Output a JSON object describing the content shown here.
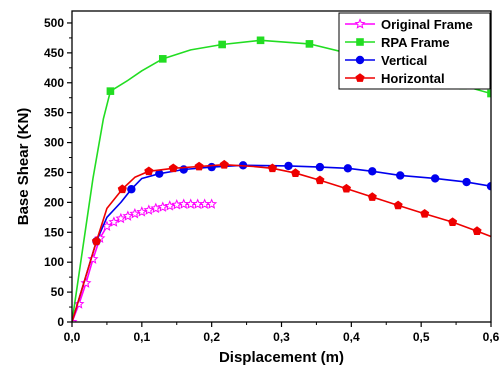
{
  "chart_data": {
    "type": "line",
    "title": "",
    "xlabel": "Displacement (m)",
    "ylabel": "Base Shear (KN)",
    "xlim": [
      0,
      0.6
    ],
    "ylim": [
      0,
      520
    ],
    "x_ticks": [
      0.0,
      0.1,
      0.2,
      0.3,
      0.4,
      0.5,
      0.6
    ],
    "x_tick_labels": [
      "0,0",
      "0,1",
      "0,2",
      "0,3",
      "0,4",
      "0,5",
      "0,6"
    ],
    "y_ticks": [
      0,
      50,
      100,
      150,
      200,
      250,
      300,
      350,
      400,
      450,
      500
    ],
    "y_tick_labels": [
      "0",
      "50",
      "100",
      "150",
      "200",
      "250",
      "300",
      "350",
      "400",
      "450",
      "500"
    ],
    "grid": false,
    "legend_position": "top-right",
    "series": [
      {
        "name": "Original Frame",
        "color": "#ff00ff",
        "marker": "star-open",
        "x": [
          0.0,
          0.01,
          0.02,
          0.03,
          0.04,
          0.05,
          0.06,
          0.07,
          0.08,
          0.09,
          0.1,
          0.11,
          0.12,
          0.13,
          0.14,
          0.15,
          0.16,
          0.17,
          0.18,
          0.19,
          0.2
        ],
        "y": [
          0,
          30,
          65,
          105,
          140,
          160,
          167,
          173,
          177,
          181,
          184,
          187,
          190,
          192,
          194,
          196,
          197,
          197,
          197,
          197,
          197
        ]
      },
      {
        "name": "RPA Frame",
        "color": "#22dd22",
        "marker": "square",
        "x": [
          0.0,
          0.015,
          0.03,
          0.045,
          0.055,
          0.08,
          0.1,
          0.13,
          0.17,
          0.215,
          0.27,
          0.34,
          0.4,
          0.46,
          0.52,
          0.56,
          0.6
        ],
        "y": [
          0,
          120,
          240,
          340,
          386,
          404,
          420,
          440,
          455,
          464,
          471,
          465,
          448,
          432,
          412,
          395,
          382
        ],
        "marker_indices": [
          4,
          7,
          9,
          10,
          11,
          15,
          16
        ]
      },
      {
        "name": "Vertical",
        "color": "#0000ee",
        "marker": "circle",
        "x": [
          0.0,
          0.035,
          0.05,
          0.07,
          0.085,
          0.1,
          0.125,
          0.16,
          0.2,
          0.245,
          0.31,
          0.355,
          0.395,
          0.43,
          0.47,
          0.52,
          0.565,
          0.6
        ],
        "y": [
          0,
          135,
          175,
          200,
          222,
          240,
          248,
          255,
          259,
          262,
          261,
          259,
          257,
          252,
          245,
          240,
          234,
          227
        ],
        "marker_indices": [
          1,
          4,
          6,
          7,
          8,
          9,
          10,
          11,
          12,
          13,
          14,
          15,
          16,
          17
        ]
      },
      {
        "name": "Horizontal",
        "color": "#ee0000",
        "marker": "pentagon",
        "x": [
          0.0,
          0.035,
          0.05,
          0.072,
          0.09,
          0.11,
          0.145,
          0.182,
          0.218,
          0.26,
          0.287,
          0.32,
          0.355,
          0.393,
          0.43,
          0.467,
          0.505,
          0.545,
          0.58,
          0.6
        ],
        "y": [
          0,
          135,
          190,
          222,
          242,
          252,
          257,
          260,
          263,
          260,
          257,
          249,
          237,
          223,
          209,
          195,
          181,
          167,
          152,
          143
        ],
        "marker_indices": [
          1,
          3,
          5,
          6,
          7,
          8,
          10,
          11,
          12,
          13,
          14,
          15,
          16,
          17,
          18
        ]
      }
    ]
  }
}
